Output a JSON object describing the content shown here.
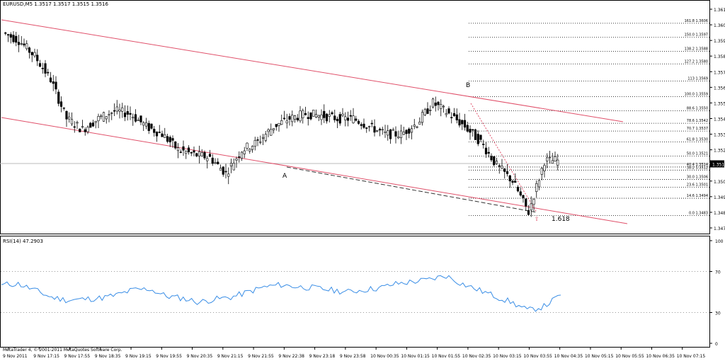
{
  "window": {
    "symbol_info": "EURUSD,M5  1.3517 1.3517 1.3515 1.3516",
    "rsi_label": "RSI(14) 47.2903",
    "copyright": "MetaTrader 4, © 2001-2011 MetaQuotes Software Corp."
  },
  "price_axis": {
    "labels": [
      "1.3615",
      "1.3605",
      "1.3595",
      "1.3585",
      "1.3575",
      "1.3565",
      "1.3555",
      "1.3545",
      "1.3535",
      "1.3525",
      "1.3505",
      "1.3495",
      "1.3485",
      "1.3475"
    ],
    "current_price": "1.3516"
  },
  "rsi_axis": {
    "labels": [
      "100",
      "70",
      "30",
      "0"
    ]
  },
  "time_axis": {
    "labels": [
      "9 Nov 2011",
      "9 Nov 17:15",
      "9 Nov 17:55",
      "9 Nov 18:35",
      "9 Nov 19:15",
      "9 Nov 19:55",
      "9 Nov 20:35",
      "9 Nov 21:15",
      "9 Nov 21:55",
      "9 Nov 22:38",
      "9 Nov 23:18",
      "9 Nov 23:58",
      "10 Nov 00:35",
      "10 Nov 01:15",
      "10 Nov 01:55",
      "10 Nov 02:35",
      "10 Nov 03:15",
      "10 Nov 03:55",
      "10 Nov 04:35",
      "10 Nov 05:15",
      "10 Nov 05:55",
      "10 Nov 06:35",
      "10 Nov 07:15"
    ]
  },
  "fib_levels": [
    {
      "label": "161.8  1.3606"
    },
    {
      "label": "150.0  1.3597"
    },
    {
      "label": "138.2  1.3588"
    },
    {
      "label": "127.2  1.3580"
    },
    {
      "label": "113    1.3569"
    },
    {
      "label": "100.0  1.3559"
    },
    {
      "label": "88.6  1.3550"
    },
    {
      "label": "78.6  1.3542"
    },
    {
      "label": "70.7  1.3537"
    },
    {
      "label": "61.8  1.3530"
    },
    {
      "label": "50.0  1.3521"
    },
    {
      "label": "40.4  1.3514"
    },
    {
      "label": "38.2  1.3512"
    },
    {
      "label": "30.0  1.3506"
    },
    {
      "label": "23.6  1.3501"
    },
    {
      "label": "14.6  1.3494"
    },
    {
      "label": "0.0  1.3483"
    }
  ],
  "annotations": {
    "point_a": "A",
    "point_b": "B",
    "extension": "1.618"
  },
  "colors": {
    "channel": "#e0506a",
    "rsi_line": "#3a8ee6",
    "grid": "#000000",
    "bull": "#ffffff",
    "bear": "#000000"
  },
  "chart_data": {
    "type": "line",
    "price_series": {
      "name": "EURUSD,M5",
      "x_index": [
        0,
        6,
        12,
        18,
        24,
        30,
        36,
        42,
        48,
        54,
        60,
        66,
        72,
        78,
        84,
        90,
        96,
        102,
        108,
        114,
        120,
        126,
        132,
        138,
        144,
        150,
        156,
        162,
        168,
        174,
        180,
        186,
        192,
        198,
        204
      ],
      "close": [
        1.36,
        1.3595,
        1.3585,
        1.357,
        1.3545,
        1.3538,
        1.3545,
        1.355,
        1.3548,
        1.354,
        1.3535,
        1.3525,
        1.3522,
        1.352,
        1.351,
        1.3525,
        1.353,
        1.354,
        1.3545,
        1.3548,
        1.3547,
        1.3545,
        1.3545,
        1.354,
        1.3535,
        1.3535,
        1.3542,
        1.3555,
        1.3548,
        1.354,
        1.353,
        1.3515,
        1.3505,
        1.3485,
        1.3518
      ]
    },
    "rsi_series": {
      "name": "RSI(14)",
      "values": [
        57,
        58,
        52,
        45,
        42,
        43,
        44,
        47,
        52,
        53,
        46,
        44,
        40,
        43,
        45,
        50,
        55,
        57,
        55,
        54,
        52,
        50,
        52,
        54,
        58,
        60,
        62,
        66,
        58,
        52,
        46,
        40,
        32,
        36,
        47
      ]
    },
    "ylim_price": [
      1.3475,
      1.3615
    ],
    "ylim_rsi": [
      0,
      100
    ]
  }
}
